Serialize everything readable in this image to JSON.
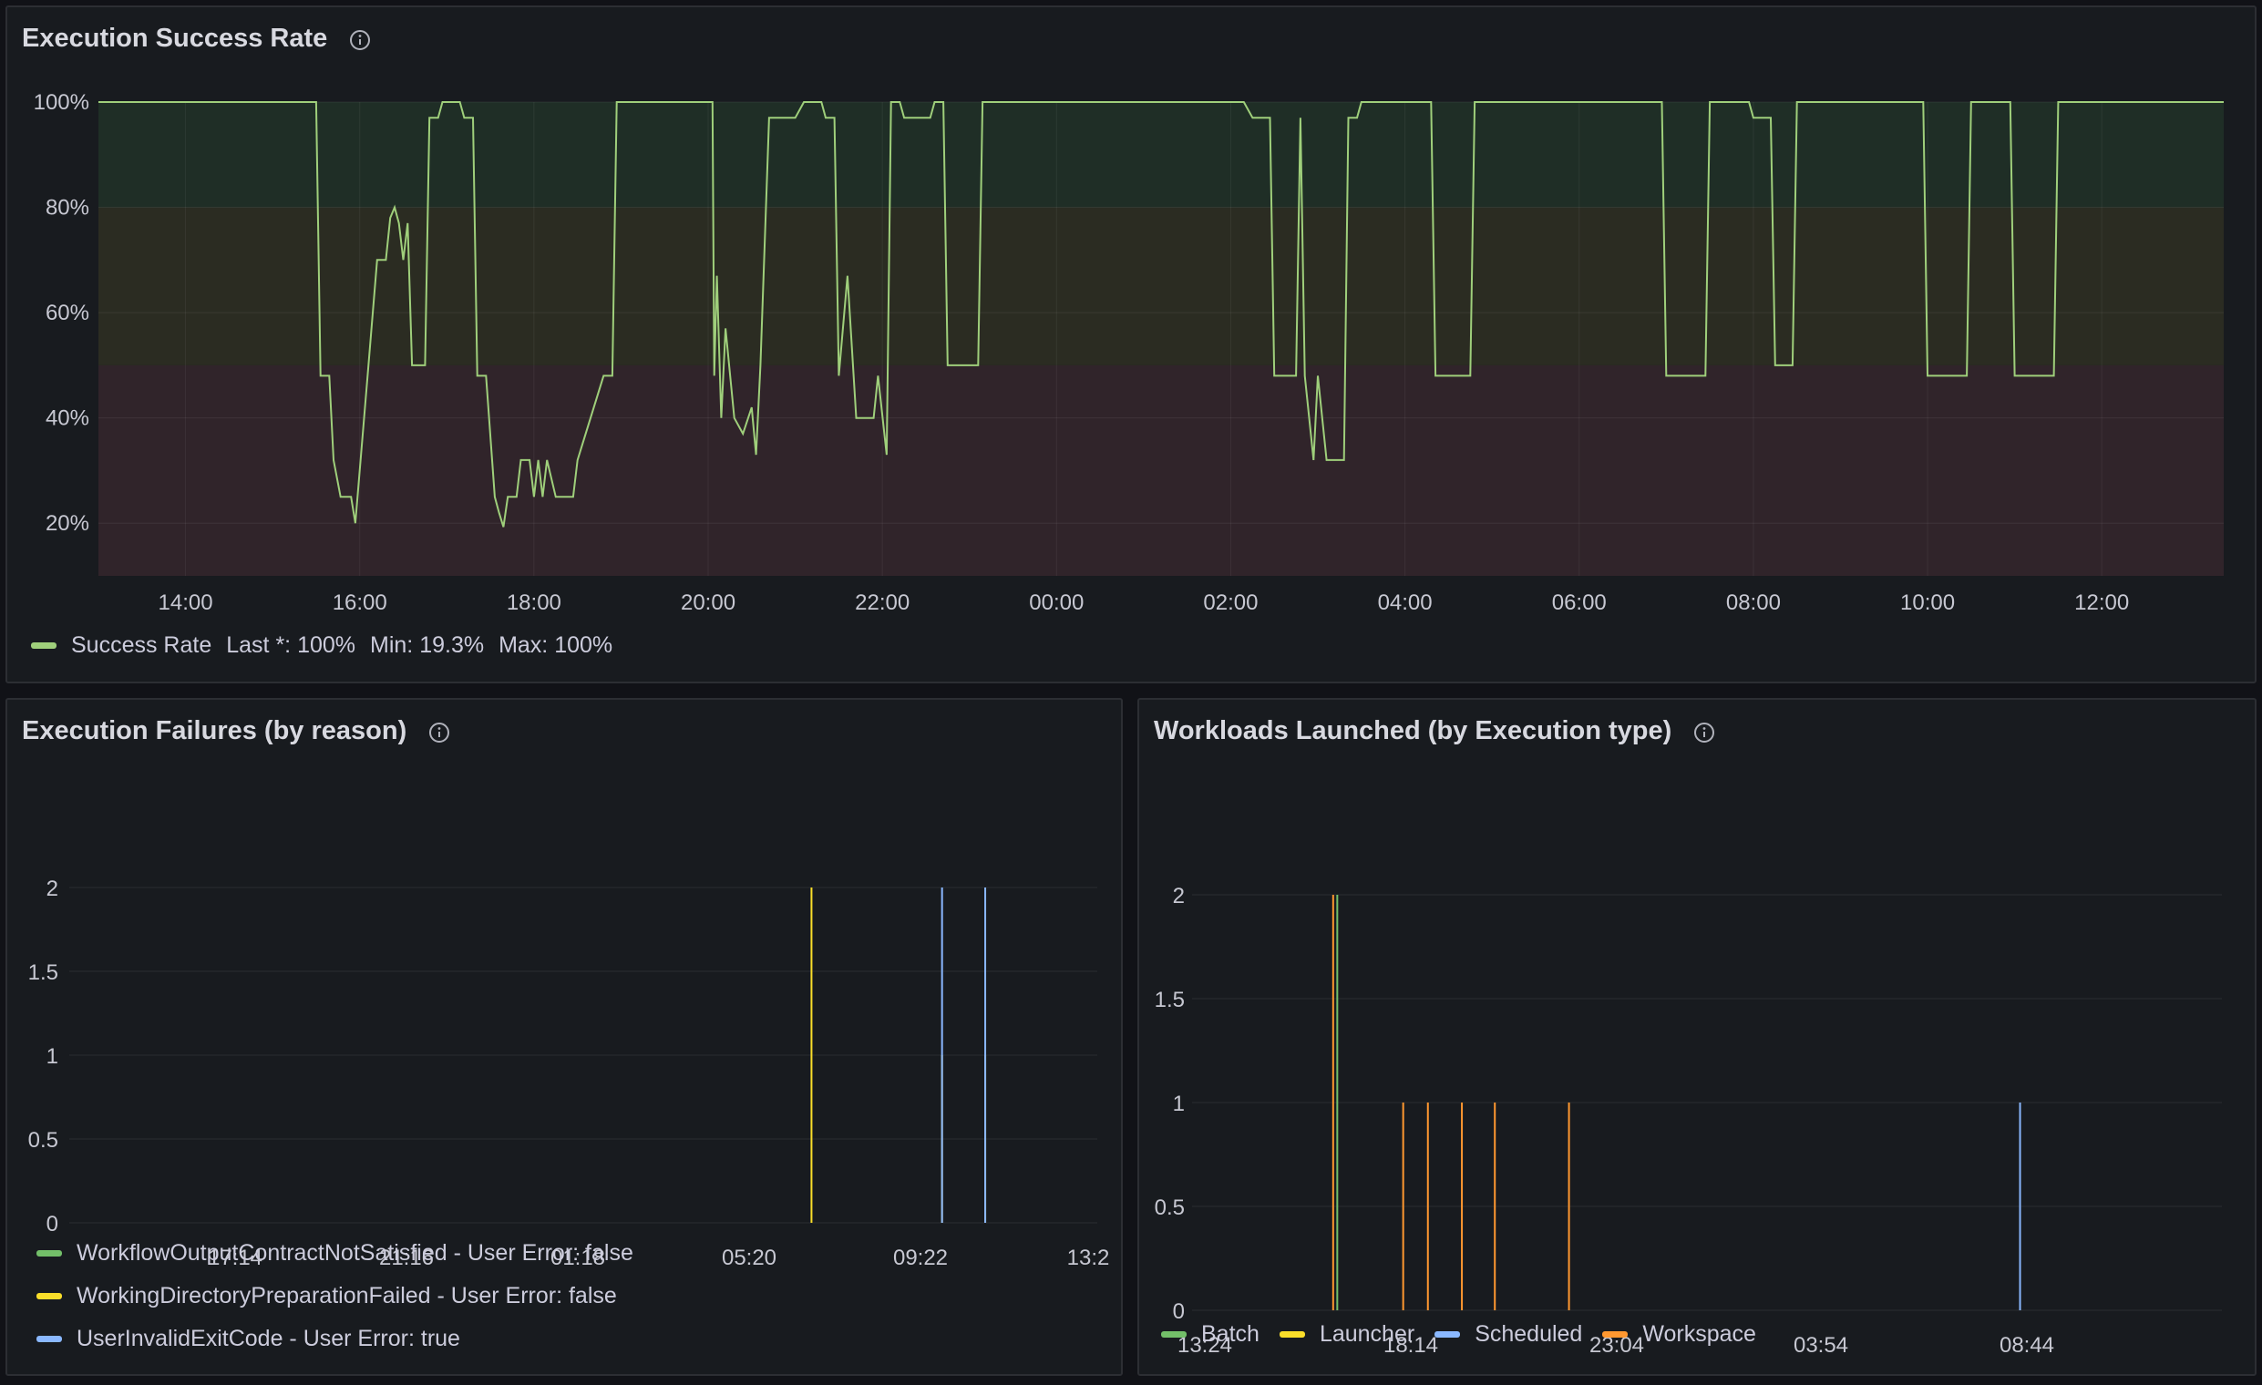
{
  "panels": {
    "success": {
      "title": "Execution Success Rate",
      "chart_data": {
        "type": "line",
        "title": "Execution Success Rate",
        "y_ticks": [
          "100%",
          "80%",
          "60%",
          "40%",
          "20%"
        ],
        "x_ticks": [
          "14:00",
          "16:00",
          "18:00",
          "20:00",
          "22:00",
          "00:00",
          "02:00",
          "04:00",
          "06:00",
          "08:00",
          "10:00",
          "12:00"
        ],
        "ylim": [
          10,
          100
        ],
        "thresholds": [
          {
            "from": 80,
            "to": 100,
            "color": "#1f2e26"
          },
          {
            "from": 50,
            "to": 80,
            "color": "#2b2c22"
          },
          {
            "from": 10,
            "to": 50,
            "color": "#30242a"
          }
        ],
        "series": [
          {
            "name": "Success Rate",
            "color": "#9fcf7b",
            "points": [
              [
                13.0,
                100
              ],
              [
                15.5,
                100
              ],
              [
                15.55,
                48
              ],
              [
                15.65,
                48
              ],
              [
                15.7,
                32
              ],
              [
                15.78,
                25
              ],
              [
                15.9,
                25
              ],
              [
                15.95,
                20
              ],
              [
                16.0,
                30
              ],
              [
                16.1,
                50
              ],
              [
                16.2,
                70
              ],
              [
                16.3,
                70
              ],
              [
                16.35,
                78
              ],
              [
                16.4,
                80
              ],
              [
                16.45,
                77
              ],
              [
                16.5,
                70
              ],
              [
                16.55,
                77
              ],
              [
                16.6,
                50
              ],
              [
                16.75,
                50
              ],
              [
                16.8,
                97
              ],
              [
                16.9,
                97
              ],
              [
                16.95,
                100
              ],
              [
                17.15,
                100
              ],
              [
                17.2,
                97
              ],
              [
                17.3,
                97
              ],
              [
                17.35,
                48
              ],
              [
                17.45,
                48
              ],
              [
                17.55,
                25
              ],
              [
                17.6,
                22
              ],
              [
                17.65,
                19.3
              ],
              [
                17.7,
                25
              ],
              [
                17.8,
                25
              ],
              [
                17.85,
                32
              ],
              [
                17.95,
                32
              ],
              [
                18.0,
                25
              ],
              [
                18.05,
                32
              ],
              [
                18.1,
                25
              ],
              [
                18.15,
                32
              ],
              [
                18.25,
                25
              ],
              [
                18.45,
                25
              ],
              [
                18.5,
                32
              ],
              [
                18.8,
                48
              ],
              [
                18.9,
                48
              ],
              [
                18.95,
                100
              ],
              [
                20.05,
                100
              ],
              [
                20.07,
                48
              ],
              [
                20.1,
                67
              ],
              [
                20.15,
                40
              ],
              [
                20.2,
                57
              ],
              [
                20.3,
                40
              ],
              [
                20.4,
                37
              ],
              [
                20.5,
                42
              ],
              [
                20.55,
                33
              ],
              [
                20.6,
                50
              ],
              [
                20.7,
                97
              ],
              [
                21.0,
                97
              ],
              [
                21.1,
                100
              ],
              [
                21.3,
                100
              ],
              [
                21.35,
                97
              ],
              [
                21.45,
                97
              ],
              [
                21.5,
                48
              ],
              [
                21.6,
                67
              ],
              [
                21.7,
                40
              ],
              [
                21.9,
                40
              ],
              [
                21.95,
                48
              ],
              [
                22.05,
                33
              ],
              [
                22.1,
                100
              ],
              [
                22.2,
                100
              ],
              [
                22.25,
                97
              ],
              [
                22.55,
                97
              ],
              [
                22.6,
                100
              ],
              [
                22.7,
                100
              ],
              [
                22.75,
                50
              ],
              [
                23.1,
                50
              ],
              [
                23.15,
                100
              ],
              [
                26.15,
                100
              ],
              [
                26.25,
                97
              ],
              [
                26.45,
                97
              ],
              [
                26.5,
                48
              ],
              [
                26.75,
                48
              ],
              [
                26.8,
                97
              ],
              [
                26.85,
                48
              ],
              [
                26.95,
                32
              ],
              [
                27.0,
                48
              ],
              [
                27.1,
                32
              ],
              [
                27.3,
                32
              ],
              [
                27.35,
                97
              ],
              [
                27.45,
                97
              ],
              [
                27.5,
                100
              ],
              [
                28.3,
                100
              ],
              [
                28.35,
                48
              ],
              [
                28.75,
                48
              ],
              [
                28.8,
                100
              ],
              [
                30.95,
                100
              ],
              [
                31.0,
                48
              ],
              [
                31.45,
                48
              ],
              [
                31.5,
                100
              ],
              [
                31.95,
                100
              ],
              [
                32.0,
                97
              ],
              [
                32.2,
                97
              ],
              [
                32.25,
                50
              ],
              [
                32.45,
                50
              ],
              [
                32.5,
                100
              ],
              [
                33.95,
                100
              ],
              [
                34.0,
                48
              ],
              [
                34.45,
                48
              ],
              [
                34.5,
                100
              ],
              [
                34.95,
                100
              ],
              [
                35.0,
                48
              ],
              [
                35.45,
                48
              ],
              [
                35.5,
                100
              ],
              [
                37.4,
                100
              ]
            ]
          }
        ]
      },
      "legend": {
        "name": "Success Rate",
        "last": "Last *: 100%",
        "min": "Min: 19.3%",
        "max": "Max: 100%"
      }
    },
    "failures": {
      "title": "Execution Failures (by reason)",
      "chart_data": {
        "type": "bar",
        "title": "Execution Failures (by reason)",
        "y_ticks": [
          "2",
          "1.5",
          "1",
          "0.5",
          "0"
        ],
        "x_ticks": [
          "17:14",
          "21:16",
          "01:18",
          "05:20",
          "09:22",
          "13:2"
        ],
        "ylim": [
          0,
          2
        ],
        "series": [
          {
            "name": "WorkflowOutputContractNotSatisfied - User Error: false",
            "color": "#73bf69",
            "events": []
          },
          {
            "name": "WorkingDirectoryPreparationFailed - User Error: false",
            "color": "#fade2a",
            "events": [
              [
                0.722,
                2
              ],
              [
                0.849,
                1
              ],
              [
                0.891,
                1
              ]
            ]
          },
          {
            "name": "UserInvalidExitCode - User Error: true",
            "color": "#8ab8ff",
            "events": [
              [
                0.849,
                2
              ],
              [
                0.891,
                2
              ]
            ]
          }
        ]
      }
    },
    "workloads": {
      "title": "Workloads Launched (by Execution type)",
      "chart_data": {
        "type": "bar",
        "title": "Workloads Launched (by Execution type)",
        "y_ticks": [
          "2",
          "1.5",
          "1",
          "0.5",
          "0"
        ],
        "x_ticks": [
          "13:24",
          "18:14",
          "23:04",
          "03:54",
          "08:44"
        ],
        "ylim": [
          0,
          2
        ],
        "series": [
          {
            "name": "Batch",
            "color": "#73bf69",
            "events": [
              [
                0.141,
                2
              ]
            ]
          },
          {
            "name": "Launcher",
            "color": "#fade2a",
            "events": []
          },
          {
            "name": "Scheduled",
            "color": "#8ab8ff",
            "events": [
              [
                0.804,
                1
              ]
            ]
          },
          {
            "name": "Workspace",
            "color": "#ff9830",
            "events": [
              [
                0.137,
                2
              ],
              [
                0.205,
                1
              ],
              [
                0.229,
                1
              ],
              [
                0.262,
                1
              ],
              [
                0.294,
                1
              ],
              [
                0.366,
                1
              ]
            ]
          }
        ]
      }
    }
  }
}
